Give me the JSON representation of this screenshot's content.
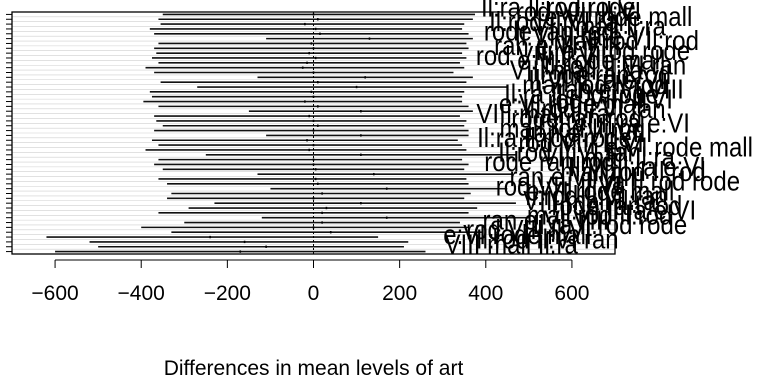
{
  "chart_data": {
    "type": "interval",
    "title": "",
    "xlabel": "Differences in mean levels of art",
    "ylabel": "",
    "xlim": [
      -700,
      700
    ],
    "xticks": [
      -600,
      -400,
      -200,
      0,
      200,
      400,
      600
    ],
    "xtick_labels": [
      "−600",
      "−400",
      "−200",
      "0",
      "200",
      "400",
      "600"
    ],
    "reference_line": 0,
    "intervals": [
      {
        "lwr": -350,
        "est": 0,
        "upr": 375
      },
      {
        "lwr": -360,
        "est": 10,
        "upr": 370
      },
      {
        "lwr": -355,
        "est": -20,
        "upr": 350
      },
      {
        "lwr": -380,
        "est": 5,
        "upr": 345
      },
      {
        "lwr": -370,
        "est": 15,
        "upr": 360
      },
      {
        "lwr": -110,
        "est": 130,
        "upr": 370
      },
      {
        "lwr": -360,
        "est": -5,
        "upr": 355
      },
      {
        "lwr": -370,
        "est": 0,
        "upr": 360
      },
      {
        "lwr": -365,
        "est": -10,
        "upr": 345
      },
      {
        "lwr": -375,
        "est": 5,
        "upr": 355
      },
      {
        "lwr": -360,
        "est": -15,
        "upr": 340
      },
      {
        "lwr": -390,
        "est": -25,
        "upr": 350
      },
      {
        "lwr": -370,
        "est": 0,
        "upr": 325
      },
      {
        "lwr": -130,
        "est": 120,
        "upr": 370
      },
      {
        "lwr": -355,
        "est": 10,
        "upr": 355
      },
      {
        "lwr": -270,
        "est": 100,
        "upr": 450
      },
      {
        "lwr": -380,
        "est": -5,
        "upr": 350
      },
      {
        "lwr": -375,
        "est": 0,
        "upr": 345
      },
      {
        "lwr": -395,
        "est": -20,
        "upr": 345
      },
      {
        "lwr": -360,
        "est": 10,
        "upr": 360
      },
      {
        "lwr": -150,
        "est": 110,
        "upr": 370
      },
      {
        "lwr": -370,
        "est": -10,
        "upr": 340
      },
      {
        "lwr": -365,
        "est": 0,
        "upr": 355
      },
      {
        "lwr": -350,
        "est": 10,
        "upr": 350
      },
      {
        "lwr": -370,
        "est": 0,
        "upr": 360
      },
      {
        "lwr": -110,
        "est": 110,
        "upr": 360
      },
      {
        "lwr": -375,
        "est": -15,
        "upr": 335
      },
      {
        "lwr": -360,
        "est": 0,
        "upr": 345
      },
      {
        "lwr": -390,
        "est": -10,
        "upr": 355
      },
      {
        "lwr": -250,
        "est": 110,
        "upr": 470
      },
      {
        "lwr": -360,
        "est": 0,
        "upr": 345
      },
      {
        "lwr": -370,
        "est": 0,
        "upr": 360
      },
      {
        "lwr": -350,
        "est": 5,
        "upr": 350
      },
      {
        "lwr": -130,
        "est": 140,
        "upr": 460
      },
      {
        "lwr": -360,
        "est": 5,
        "upr": 355
      },
      {
        "lwr": -340,
        "est": 10,
        "upr": 360
      },
      {
        "lwr": -100,
        "est": 170,
        "upr": 450
      },
      {
        "lwr": -330,
        "est": 20,
        "upr": 365
      },
      {
        "lwr": -340,
        "est": 0,
        "upr": 350
      },
      {
        "lwr": -230,
        "est": 110,
        "upr": 470
      },
      {
        "lwr": -290,
        "est": 30,
        "upr": 380
      },
      {
        "lwr": -360,
        "est": 20,
        "upr": 360
      },
      {
        "lwr": -120,
        "est": 170,
        "upr": 500
      },
      {
        "lwr": -300,
        "est": 20,
        "upr": 340
      },
      {
        "lwr": -400,
        "est": 0,
        "upr": 360
      },
      {
        "lwr": -330,
        "est": 40,
        "upr": 390
      },
      {
        "lwr": -620,
        "est": -240,
        "upr": 150
      },
      {
        "lwr": -520,
        "est": -160,
        "upr": 220
      },
      {
        "lwr": -500,
        "est": -110,
        "upr": 210
      },
      {
        "lwr": -600,
        "est": -170,
        "upr": 260
      }
    ]
  }
}
